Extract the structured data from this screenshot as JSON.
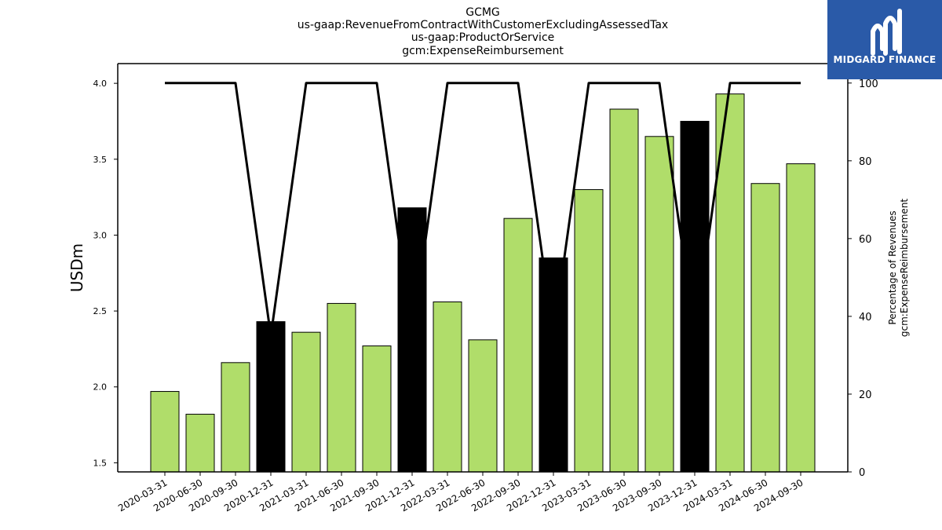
{
  "chart_data": {
    "type": "bar",
    "title_lines": [
      "GCMG",
      "us-gaap:RevenueFromContractWithCustomerExcludingAssessedTax",
      "us-gaap:ProductOrService",
      "gcm:ExpenseReimbursement"
    ],
    "categories": [
      "2020-03-31",
      "2020-06-30",
      "2020-09-30",
      "2020-12-31",
      "2021-03-31",
      "2021-06-30",
      "2021-09-30",
      "2021-12-31",
      "2022-03-31",
      "2022-06-30",
      "2022-09-30",
      "2022-12-31",
      "2023-03-31",
      "2023-06-30",
      "2023-09-30",
      "2023-12-31",
      "2024-03-31",
      "2024-06-30",
      "2024-09-30"
    ],
    "series": [
      {
        "axis": "left",
        "kind": "bar",
        "values": [
          1.97,
          1.82,
          2.16,
          2.43,
          2.36,
          2.55,
          2.27,
          3.18,
          2.56,
          2.31,
          3.11,
          2.85,
          3.3,
          3.83,
          3.65,
          3.75,
          3.93,
          3.34,
          3.47
        ],
        "bar_colors": [
          "#b0dd6a",
          "#b0dd6a",
          "#b0dd6a",
          "#000000",
          "#b0dd6a",
          "#b0dd6a",
          "#b0dd6a",
          "#000000",
          "#b0dd6a",
          "#b0dd6a",
          "#b0dd6a",
          "#000000",
          "#b0dd6a",
          "#b0dd6a",
          "#b0dd6a",
          "#000000",
          "#b0dd6a",
          "#b0dd6a",
          "#b0dd6a"
        ]
      },
      {
        "axis": "right",
        "kind": "line",
        "values": [
          100,
          100,
          100,
          35,
          100,
          100,
          100,
          35,
          100,
          100,
          100,
          35,
          100,
          100,
          100,
          35,
          100,
          100,
          100
        ],
        "color": "#000000"
      }
    ],
    "ylabel": "USDm",
    "y2label_lines": [
      "Percentage of Revenues",
      "gcm:ExpenseReimbursement"
    ],
    "ylim": [
      1.44,
      4.13
    ],
    "yticks": [
      1.5,
      2.0,
      2.5,
      3.0,
      3.5,
      4.0
    ],
    "ytick_labels": [
      "1.5",
      "2.0",
      "2.5",
      "3.0",
      "3.5",
      "4.0"
    ],
    "y2lim": [
      0,
      105
    ],
    "y2ticks": [
      0,
      20,
      40,
      60,
      80,
      100
    ],
    "y2tick_labels": [
      "0",
      "20",
      "40",
      "60",
      "80",
      "100"
    ],
    "grid": false,
    "legend": "none"
  },
  "logo": {
    "text": "MIDGARD FINANCE",
    "color": "#2a5aa8"
  }
}
